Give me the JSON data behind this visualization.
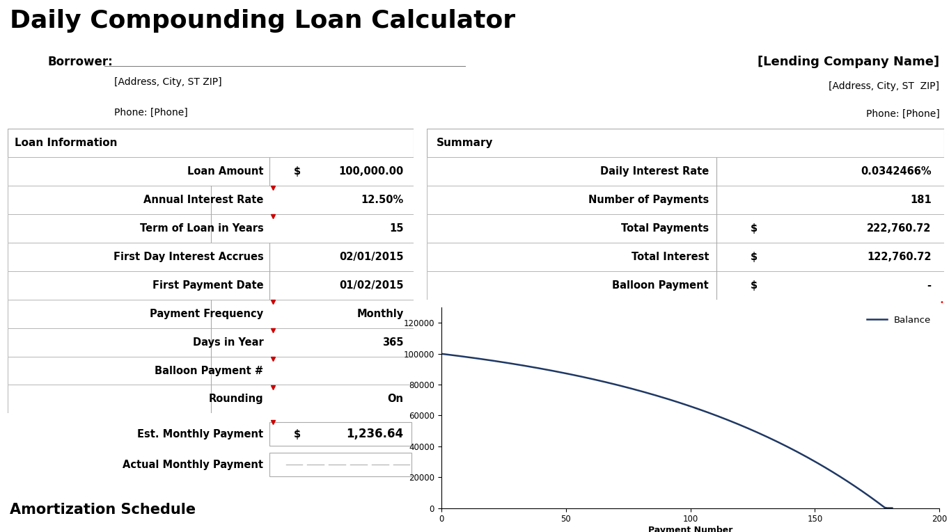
{
  "title": "Daily Compounding Loan Calculator",
  "title_bg": "#c0c0c0",
  "title_fontsize": 28,
  "borrower_label": "Borrower:",
  "borrower_address": "[Address, City, ST ZIP]",
  "borrower_phone": "Phone: [Phone]",
  "lender_name": "[Lending Company Name]",
  "lender_address": "[Address, City, ST  ZIP]",
  "lender_phone": "Phone: [Phone]",
  "loan_info_header": "Loan Information",
  "loan_fields": [
    [
      "Loan Amount",
      "$",
      "100,000.00"
    ],
    [
      "Annual Interest Rate",
      "",
      "12.50%"
    ],
    [
      "Term of Loan in Years",
      "",
      "15"
    ],
    [
      "First Day Interest Accrues",
      "",
      "02/01/2015"
    ],
    [
      "First Payment Date",
      "",
      "01/02/2015"
    ],
    [
      "Payment Frequency",
      "",
      "Monthly"
    ],
    [
      "Days in Year",
      "",
      "365"
    ],
    [
      "Balloon Payment #",
      "",
      ""
    ],
    [
      "Rounding",
      "",
      "On"
    ]
  ],
  "red_triangle_rows": [
    1,
    2,
    5,
    6,
    7,
    8
  ],
  "est_monthly_payment_label": "Est. Monthly Payment",
  "est_monthly_payment_dollar": "$",
  "est_monthly_payment_value": "1,236.64",
  "actual_monthly_payment_label": "Actual Monthly Payment",
  "summary_header": "Summary",
  "summary_fields": [
    [
      "Daily Interest Rate",
      "",
      "0.0342466%"
    ],
    [
      "Number of Payments",
      "",
      "181"
    ],
    [
      "Total Payments",
      "$",
      "222,760.72"
    ],
    [
      "Total Interest",
      "$",
      "122,760.72"
    ],
    [
      "Balloon Payment",
      "$",
      "-"
    ]
  ],
  "amortization_label": "Amortization Schedule",
  "chart_ylabel_values": [
    0,
    20000,
    40000,
    60000,
    80000,
    100000,
    120000
  ],
  "chart_xlabel": "Payment Number",
  "chart_xticks": [
    0,
    50,
    100,
    150,
    200
  ],
  "chart_line_color": "#1f3864",
  "chart_legend_label": "Balance",
  "bg_color": "#ffffff",
  "table_bg_light": "#e8e8e8",
  "table_bg_header": "#b8b8b8",
  "table_border": "#aaaaaa",
  "red_triangle_color": "#cc0000",
  "text_color": "#000000"
}
